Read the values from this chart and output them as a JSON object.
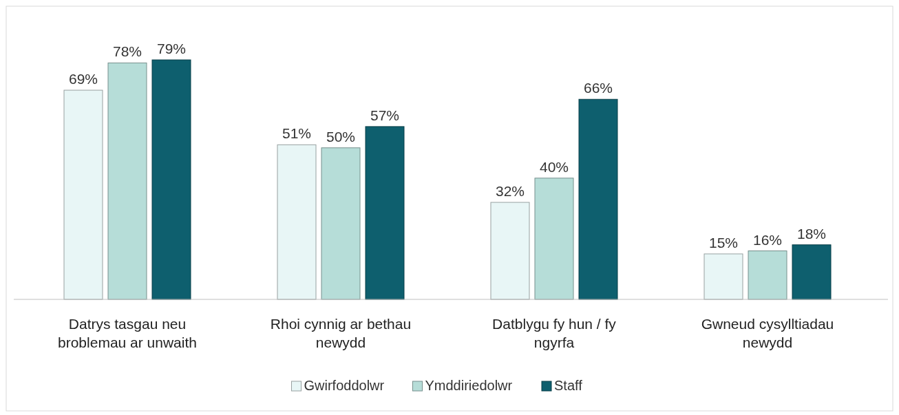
{
  "chart_data": {
    "type": "bar",
    "categories": [
      "Datrys tasgau neu broblemau ar unwaith",
      "Rhoi cynnig ar bethau newydd",
      "Datblygu fy hun / fy ngyrfa",
      "Gwneud cysylltiadau newydd"
    ],
    "series": [
      {
        "name": "Gwirfoddolwr",
        "color": "#e8f6f6",
        "values": [
          69,
          51,
          32,
          15
        ],
        "value_labels": [
          "69%",
          "51%",
          "32%",
          "15%"
        ]
      },
      {
        "name": "Ymddiriedolwr",
        "color": "#b6ddd8",
        "values": [
          78,
          50,
          40,
          16
        ],
        "value_labels": [
          "78%",
          "50%",
          "40%",
          "16%"
        ]
      },
      {
        "name": "Staff",
        "color": "#0e5f6e",
        "values": [
          79,
          57,
          66,
          18
        ],
        "value_labels": [
          "79%",
          "57%",
          "66%",
          "18%"
        ]
      }
    ],
    "legend": "bottom"
  }
}
